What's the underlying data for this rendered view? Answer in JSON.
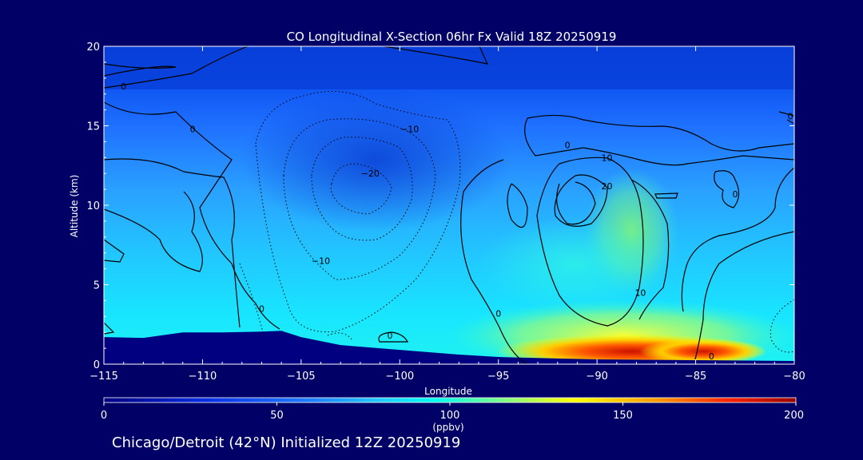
{
  "chart_data": {
    "type": "heatmap",
    "title": "CO Longitudinal X-Section 06hr  Fx Valid 18Z 20250919",
    "xlabel": "Longitude",
    "ylabel": "Altitude (km)",
    "xlim": [
      -115,
      -80
    ],
    "ylim": [
      0,
      20
    ],
    "xticks": [
      "−115",
      "−110",
      "−105",
      "−100",
      "−95",
      "−90",
      "−85",
      "−80"
    ],
    "xtick_values": [
      -115,
      -110,
      -105,
      -100,
      -95,
      -90,
      -85,
      -80
    ],
    "yticks": [
      "0",
      "5",
      "10",
      "15",
      "20"
    ],
    "ytick_values": [
      0,
      5,
      10,
      15,
      20
    ],
    "colorbar": {
      "label": "(ppbv)",
      "range": [
        0,
        200
      ],
      "ticks": [
        "0",
        "50",
        "100",
        "150",
        "200"
      ],
      "tick_values": [
        0,
        50,
        100,
        150,
        200
      ]
    },
    "contour_labels": [
      {
        "text": "0",
        "lon": -114,
        "alt": 17.5
      },
      {
        "text": "0",
        "lon": -110.5,
        "alt": 14.8
      },
      {
        "text": "−10",
        "lon": -99.5,
        "alt": 14.8
      },
      {
        "text": "−20",
        "lon": -101.5,
        "alt": 12.0
      },
      {
        "text": "−10",
        "lon": -104,
        "alt": 6.5
      },
      {
        "text": "0",
        "lon": -91.5,
        "alt": 13.8
      },
      {
        "text": "10",
        "lon": -89.5,
        "alt": 13.0
      },
      {
        "text": "20",
        "lon": -89.5,
        "alt": 11.2
      },
      {
        "text": "0",
        "lon": -107,
        "alt": 3.5
      },
      {
        "text": "0",
        "lon": -100.5,
        "alt": 1.8
      },
      {
        "text": "0",
        "lon": -95,
        "alt": 3.2
      },
      {
        "text": "10",
        "lon": -87.8,
        "alt": 4.5
      },
      {
        "text": "0",
        "lon": -84.2,
        "alt": 0.5
      },
      {
        "text": "0",
        "lon": -80.2,
        "alt": 15.6
      },
      {
        "text": "0",
        "lon": -83,
        "alt": 10.7
      }
    ],
    "terrain_profile": {
      "lon": [
        -115,
        -113,
        -111,
        -109,
        -107,
        -106,
        -105,
        -103,
        -100,
        -97,
        -95,
        -90,
        -85,
        -80
      ],
      "alt": [
        1.7,
        1.65,
        2.0,
        2.0,
        2.05,
        2.1,
        1.7,
        1.2,
        0.9,
        0.6,
        0.45,
        0.3,
        0.25,
        0.2
      ]
    },
    "co_field_ppbv": {
      "note": "approximate CO mixing ratio, rows = altitude (km), cols = longitude",
      "lon": [
        -115,
        -110,
        -105,
        -100,
        -95,
        -90,
        -85,
        -80
      ],
      "alt": [
        0.5,
        2,
        5,
        8,
        11,
        14,
        17,
        19.5
      ],
      "values": [
        [
          40,
          60,
          70,
          80,
          120,
          170,
          185,
          100
        ],
        [
          55,
          70,
          70,
          78,
          95,
          105,
          95,
          75
        ],
        [
          52,
          60,
          68,
          76,
          82,
          92,
          85,
          72
        ],
        [
          45,
          52,
          62,
          72,
          72,
          92,
          82,
          68
        ],
        [
          40,
          45,
          50,
          60,
          62,
          85,
          72,
          55
        ],
        [
          35,
          38,
          42,
          48,
          50,
          58,
          48,
          42
        ],
        [
          25,
          28,
          30,
          30,
          28,
          28,
          28,
          26
        ],
        [
          20,
          20,
          20,
          20,
          20,
          20,
          20,
          20
        ]
      ]
    }
  },
  "footer": {
    "text": "Chicago/Detroit (42°N) Initialized 12Z 20250919"
  }
}
